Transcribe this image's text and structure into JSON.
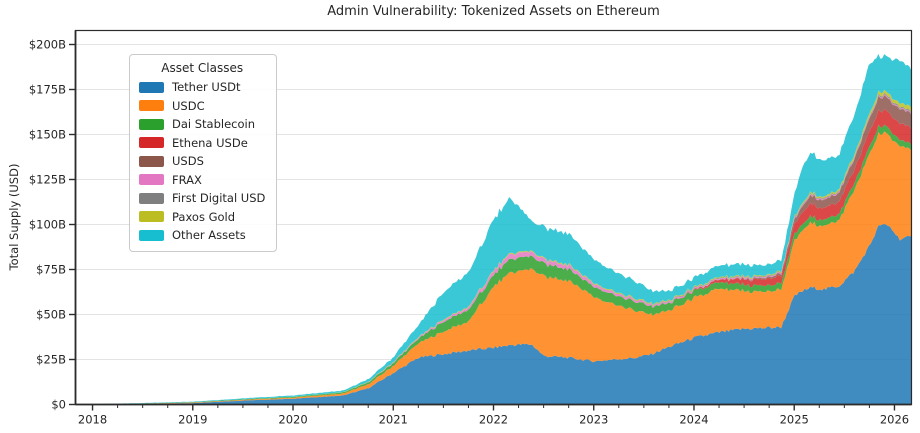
{
  "figure": {
    "title": "Admin Vulnerability: Tokenized Assets on Ethereum",
    "ylabel": "Total Supply (USD)"
  },
  "legend": {
    "title": "Asset Classes",
    "items": [
      {
        "label": "Tether USDt",
        "color": "#1f77b4"
      },
      {
        "label": "USDC",
        "color": "#ff7f0e"
      },
      {
        "label": "Dai Stablecoin",
        "color": "#2ca02c"
      },
      {
        "label": "Ethena USDe",
        "color": "#d62728"
      },
      {
        "label": "USDS",
        "color": "#8c564b"
      },
      {
        "label": "FRAX",
        "color": "#e377c2"
      },
      {
        "label": "First Digital USD",
        "color": "#7f7f7f"
      },
      {
        "label": "Paxos Gold",
        "color": "#bcbd22"
      },
      {
        "label": "Other Assets",
        "color": "#17becf"
      }
    ]
  },
  "chart_data": {
    "type": "area",
    "stacked": true,
    "title": "Admin Vulnerability: Tokenized Assets on Ethereum",
    "xlabel": "",
    "ylabel": "Total Supply (USD)",
    "unit": "billions of USD",
    "legend_title": "Asset Classes",
    "legend_position": "upper left",
    "grid": "horizontal",
    "xlim": [
      2017.83,
      2026.17
    ],
    "ylim": [
      0,
      200
    ],
    "x_ticks": [
      2018,
      2019,
      2020,
      2021,
      2022,
      2023,
      2024,
      2025,
      2026
    ],
    "x_tick_labels": [
      "2018",
      "2019",
      "2020",
      "2021",
      "2022",
      "2023",
      "2024",
      "2025",
      "2026"
    ],
    "y_ticks": [
      0,
      25,
      50,
      75,
      100,
      125,
      150,
      175,
      200
    ],
    "y_tick_labels": [
      "$0",
      "$25B",
      "$50B",
      "$75B",
      "$100B",
      "$125B",
      "$150B",
      "$175B",
      "$200B"
    ],
    "x": [
      2017.83,
      2018.0,
      2018.5,
      2019.0,
      2019.5,
      2020.0,
      2020.5,
      2020.75,
      2021.0,
      2021.25,
      2021.5,
      2021.75,
      2022.0,
      2022.17,
      2022.38,
      2022.5,
      2022.75,
      2023.0,
      2023.2,
      2023.42,
      2023.58,
      2023.75,
      2024.0,
      2024.25,
      2024.5,
      2024.7,
      2024.87,
      2025.0,
      2025.08,
      2025.17,
      2025.3,
      2025.45,
      2025.6,
      2025.75,
      2025.85,
      2025.95,
      2026.05,
      2026.17
    ],
    "series": [
      {
        "name": "Tether USDt",
        "color": "#1f77b4",
        "values": [
          0,
          0.1,
          0.4,
          0.8,
          2.2,
          3.2,
          5.0,
          9.0,
          17.5,
          26,
          28,
          30,
          31.5,
          33,
          33.5,
          27,
          26,
          24,
          25,
          26,
          28,
          32,
          37,
          40,
          42,
          42.5,
          43,
          60,
          63,
          65,
          64,
          66,
          74,
          88,
          100,
          99,
          92,
          93
        ]
      },
      {
        "name": "USDC",
        "color": "#ff7f0e",
        "values": [
          0,
          0,
          0.1,
          0.3,
          0.4,
          0.6,
          1.1,
          2.2,
          4.0,
          8,
          12.5,
          16,
          34,
          40,
          42,
          44,
          43,
          36,
          31,
          26,
          22,
          20,
          22,
          24,
          21,
          20,
          21,
          30,
          33,
          36,
          35,
          37,
          45,
          51,
          51,
          50,
          52,
          47
        ]
      },
      {
        "name": "Dai Stablecoin",
        "color": "#2ca02c",
        "values": [
          0,
          0,
          0.1,
          0.2,
          0.3,
          0.4,
          0.6,
          1.0,
          1.6,
          2.5,
          5.5,
          6.5,
          6.5,
          7.5,
          7,
          7,
          6.5,
          5.5,
          5.2,
          5,
          4.5,
          4,
          3.8,
          3.6,
          3.5,
          3.4,
          3.4,
          3.6,
          3.6,
          3.5,
          3.4,
          3.5,
          3.8,
          4,
          4,
          3.8,
          3.5,
          3
        ]
      },
      {
        "name": "Ethena USDe",
        "color": "#d62728",
        "values": [
          0,
          0,
          0,
          0,
          0,
          0,
          0,
          0,
          0,
          0,
          0,
          0,
          0,
          0,
          0,
          0,
          0,
          0,
          0,
          0,
          0,
          0,
          0.3,
          1.5,
          3.0,
          3.5,
          4.2,
          5.5,
          6.5,
          7,
          6.5,
          6.8,
          7.5,
          8.5,
          8.5,
          8.8,
          9,
          9
        ]
      },
      {
        "name": "USDS",
        "color": "#8c564b",
        "values": [
          0,
          0,
          0,
          0,
          0,
          0,
          0,
          0,
          0,
          0,
          0,
          0,
          0,
          0,
          0,
          0,
          0,
          0,
          0,
          0,
          0,
          0,
          0,
          0,
          0.3,
          0.8,
          1.2,
          2.5,
          3.5,
          4.5,
          4.5,
          5,
          6,
          7,
          7.5,
          7.5,
          8,
          8
        ]
      },
      {
        "name": "FRAX",
        "color": "#e377c2",
        "values": [
          0,
          0,
          0,
          0,
          0,
          0,
          0,
          0.1,
          0.3,
          0.6,
          1.0,
          1.3,
          2.2,
          2.8,
          2.5,
          2.3,
          2.0,
          1.6,
          1.3,
          1.1,
          0.9,
          0.8,
          0.7,
          0.6,
          0.6,
          0.5,
          0.5,
          0.5,
          0.5,
          0.5,
          0.5,
          0.5,
          0.5,
          0.5,
          0.5,
          0.5,
          0.5,
          0.5
        ]
      },
      {
        "name": "First Digital USD",
        "color": "#7f7f7f",
        "values": [
          0,
          0,
          0,
          0,
          0,
          0,
          0,
          0,
          0,
          0,
          0,
          0,
          0,
          0,
          0,
          0,
          0.1,
          0.1,
          0.15,
          0.2,
          0.25,
          0.3,
          0.4,
          0.4,
          0.4,
          0.4,
          0.4,
          0.5,
          0.5,
          0.5,
          0.5,
          0.5,
          0.6,
          0.6,
          0.7,
          0.7,
          0.7,
          0.7
        ]
      },
      {
        "name": "Paxos Gold",
        "color": "#bcbd22",
        "values": [
          0,
          0,
          0,
          0,
          0,
          0.1,
          0.15,
          0.2,
          0.25,
          0.3,
          0.35,
          0.4,
          0.45,
          0.5,
          0.5,
          0.5,
          0.5,
          0.5,
          0.5,
          0.5,
          0.5,
          0.5,
          0.5,
          0.5,
          0.5,
          0.5,
          0.5,
          0.6,
          0.7,
          0.8,
          0.8,
          1.0,
          1.3,
          1.6,
          1.8,
          1.8,
          2.0,
          2.5
        ]
      },
      {
        "name": "Other Assets",
        "color": "#17becf",
        "values": [
          0,
          0.1,
          0.2,
          0.3,
          0.5,
          0.7,
          0.9,
          1.5,
          2.6,
          6.6,
          15,
          19,
          28,
          30.7,
          16.5,
          17.5,
          17,
          13.3,
          11,
          9.5,
          7,
          5,
          5.3,
          6.5,
          6.5,
          5.5,
          6,
          12,
          20,
          22,
          20,
          19,
          22,
          28,
          19,
          20,
          24,
          21
        ]
      }
    ]
  }
}
